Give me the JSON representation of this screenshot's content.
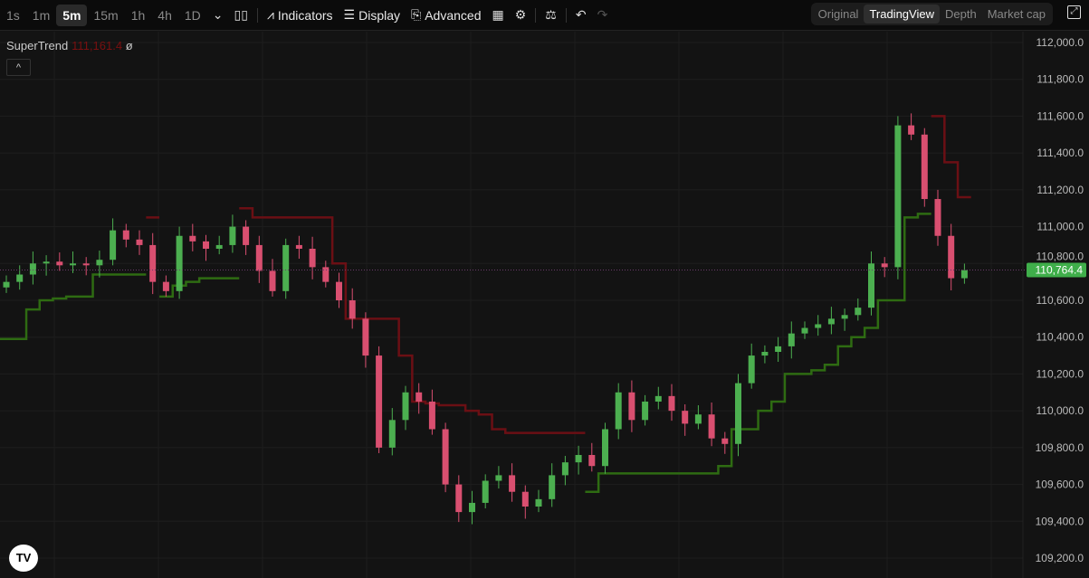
{
  "toolbar": {
    "timeframes": [
      "1s",
      "1m",
      "5m",
      "15m",
      "1h",
      "4h",
      "1D"
    ],
    "active_timeframe": "5m",
    "indicators": "Indicators",
    "display": "Display",
    "advanced": "Advanced"
  },
  "views": {
    "items": [
      "Original",
      "TradingView",
      "Depth",
      "Market cap"
    ],
    "active": "TradingView"
  },
  "legend": {
    "name": "SuperTrend",
    "value": "111,161.4",
    "extra": "ø"
  },
  "logo": "TV",
  "colors": {
    "up": "#4caf50",
    "down": "#d94f70",
    "st_up": "#2e6b12",
    "st_down": "#6b0f14",
    "price_label": "#3fae4a"
  },
  "chart_data": {
    "type": "candlestick",
    "ylim": [
      109200,
      112000
    ],
    "yticks": [
      "109,200.0",
      "109,400.0",
      "109,600.0",
      "109,800.0",
      "110,000.0",
      "110,200.0",
      "110,400.0",
      "110,600.0",
      "110,800.0",
      "111,000.0",
      "111,200.0",
      "111,400.0",
      "111,600.0",
      "111,800.0",
      "112,000.0"
    ],
    "last_price": 110764.4,
    "last_price_label": "110,764.4",
    "closes": [
      110700,
      110740,
      110800,
      110810,
      110790,
      110800,
      110790,
      110820,
      110980,
      110930,
      110900,
      110700,
      110650,
      110950,
      110920,
      110880,
      110900,
      111000,
      110900,
      110760,
      110650,
      110900,
      110880,
      110780,
      110700,
      110600,
      110500,
      110300,
      109800,
      109950,
      110100,
      110050,
      109900,
      109600,
      109450,
      109500,
      109620,
      109650,
      109560,
      109480,
      109520,
      109650,
      109720,
      109760,
      109700,
      109900,
      110100,
      109950,
      110050,
      110080,
      110000,
      109930,
      109980,
      109850,
      109820,
      110150,
      110300,
      110320,
      110350,
      110420,
      110450,
      110470,
      110500,
      110520,
      110560,
      110800,
      110780,
      111550,
      111500,
      111150,
      110950,
      110720,
      110764
    ],
    "supertrend_up": [
      110390,
      110390,
      110550,
      110600,
      110610,
      110620,
      110620,
      110740,
      110740,
      110740,
      110740,
      null,
      110620,
      110680,
      110700,
      110720,
      110720,
      110720,
      null,
      null,
      null,
      null,
      null,
      null,
      null,
      null,
      null,
      null,
      null,
      null,
      null,
      null,
      null,
      null,
      null,
      null,
      null,
      null,
      null,
      null,
      null,
      null,
      null,
      null,
      109560,
      109660,
      109660,
      109660,
      109660,
      109660,
      109660,
      109660,
      109660,
      109660,
      109700,
      109900,
      109900,
      110000,
      110050,
      110200,
      110200,
      110220,
      110250,
      110350,
      110400,
      110450,
      110600,
      110600,
      111050,
      111070,
      null,
      null,
      null
    ],
    "supertrend_down": [
      null,
      null,
      null,
      null,
      null,
      null,
      null,
      null,
      null,
      null,
      null,
      111050,
      null,
      null,
      null,
      null,
      null,
      null,
      111100,
      111050,
      111050,
      111050,
      111050,
      111050,
      111050,
      110800,
      110500,
      110500,
      110500,
      110500,
      110300,
      110050,
      110040,
      110030,
      110030,
      110000,
      109980,
      109900,
      109880,
      109880,
      109880,
      109880,
      109880,
      109880,
      null,
      null,
      null,
      null,
      null,
      null,
      null,
      null,
      null,
      null,
      null,
      null,
      null,
      null,
      null,
      null,
      null,
      null,
      null,
      null,
      null,
      null,
      null,
      null,
      null,
      null,
      111600,
      111350,
      111160
    ]
  }
}
